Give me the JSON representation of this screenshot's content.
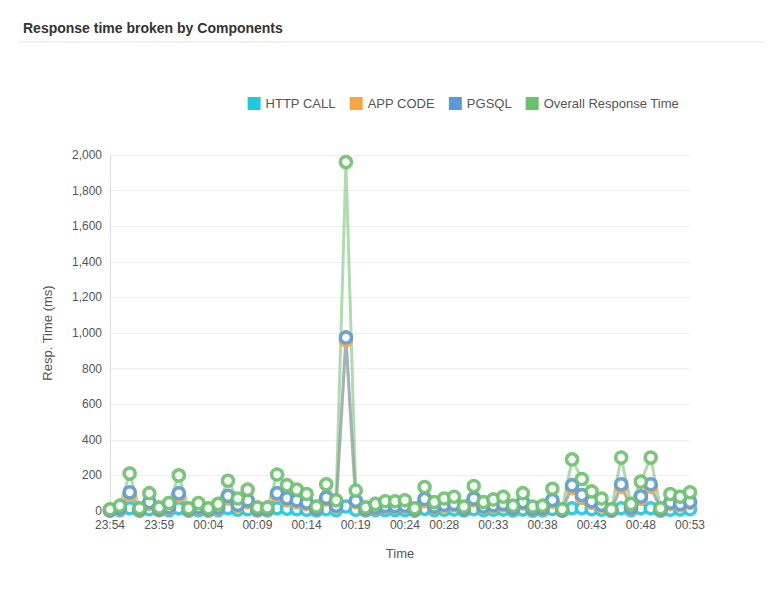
{
  "chart_data": {
    "type": "line",
    "title": "Response time broken by Components",
    "x_label": "Time",
    "y_label": "Resp. Time (ms)",
    "legend": "top-right",
    "grid": true,
    "marker": "circle",
    "categories": [
      "23:54",
      null,
      null,
      null,
      null,
      "23:59",
      null,
      null,
      null,
      null,
      "00:04",
      null,
      null,
      null,
      null,
      "00:09",
      null,
      null,
      null,
      null,
      "00:14",
      null,
      null,
      null,
      null,
      "00:19",
      null,
      null,
      null,
      null,
      "00:24",
      null,
      null,
      null,
      "00:28",
      null,
      null,
      null,
      null,
      "00:33",
      null,
      null,
      null,
      null,
      "00:38",
      null,
      null,
      null,
      null,
      "00:43",
      null,
      null,
      null,
      null,
      "00:48",
      null,
      null,
      null,
      null,
      "00:53"
    ],
    "ylim": [
      0,
      2000
    ],
    "yticks": [
      0,
      200,
      400,
      600,
      800,
      {
        "value": 1000,
        "label": "1,000"
      },
      {
        "value": 1200,
        "label": "1,200"
      },
      {
        "value": 1400,
        "label": "1,400"
      },
      {
        "value": 1600,
        "label": "1,600"
      },
      {
        "value": 1800,
        "label": "1,800"
      },
      {
        "value": 2000,
        "label": "2,000"
      }
    ],
    "series": [
      {
        "name": "HTTP CALL",
        "color": "#1fc8e3",
        "values": [
          2,
          5,
          15,
          2,
          10,
          4,
          5,
          15,
          2,
          5,
          2,
          5,
          15,
          7,
          10,
          3,
          3,
          15,
          13,
          10,
          7,
          3,
          10,
          5,
          25,
          7,
          3,
          4,
          5,
          5,
          5,
          2,
          12,
          5,
          7,
          8,
          3,
          10,
          5,
          7,
          8,
          3,
          8,
          2,
          3,
          11,
          2,
          15,
          15,
          10,
          7,
          2,
          15,
          5,
          15,
          15,
          2,
          7,
          8,
          10
        ]
      },
      {
        "name": "APP CODE",
        "color": "#f7a541",
        "values": [
          3,
          10,
          90,
          5,
          40,
          6,
          18,
          85,
          5,
          18,
          5,
          15,
          70,
          28,
          50,
          7,
          7,
          90,
          60,
          50,
          40,
          10,
          65,
          25,
          960,
          50,
          7,
          16,
          22,
          22,
          25,
          5,
          55,
          20,
          28,
          32,
          10,
          60,
          20,
          26,
          32,
          12,
          42,
          10,
          12,
          52,
          3,
          130,
          75,
          45,
          28,
          3,
          135,
          15,
          68,
          135,
          5,
          40,
          32,
          45
        ]
      },
      {
        "name": "PGSQL",
        "color": "#5b9bd5",
        "values": [
          5,
          15,
          105,
          8,
          50,
          10,
          22,
          100,
          8,
          22,
          8,
          20,
          85,
          35,
          60,
          10,
          10,
          100,
          72,
          60,
          48,
          12,
          75,
          30,
          975,
          58,
          10,
          20,
          28,
          28,
          30,
          8,
          68,
          25,
          35,
          40,
          12,
          70,
          25,
          32,
          40,
          15,
          50,
          12,
          15,
          62,
          5,
          145,
          90,
          55,
          35,
          5,
          150,
          20,
          82,
          150,
          8,
          48,
          40,
          52
        ]
      },
      {
        "name": "Overall Response Time",
        "color": "#6cc06c",
        "values": [
          10,
          30,
          210,
          15,
          100,
          20,
          45,
          200,
          15,
          45,
          15,
          40,
          170,
          70,
          120,
          20,
          20,
          205,
          145,
          120,
          95,
          25,
          150,
          60,
          1960,
          115,
          20,
          40,
          55,
          55,
          60,
          15,
          135,
          50,
          70,
          80,
          25,
          140,
          50,
          65,
          80,
          30,
          100,
          25,
          30,
          125,
          10,
          290,
          180,
          110,
          70,
          10,
          300,
          40,
          165,
          300,
          15,
          95,
          80,
          105
        ]
      }
    ]
  }
}
